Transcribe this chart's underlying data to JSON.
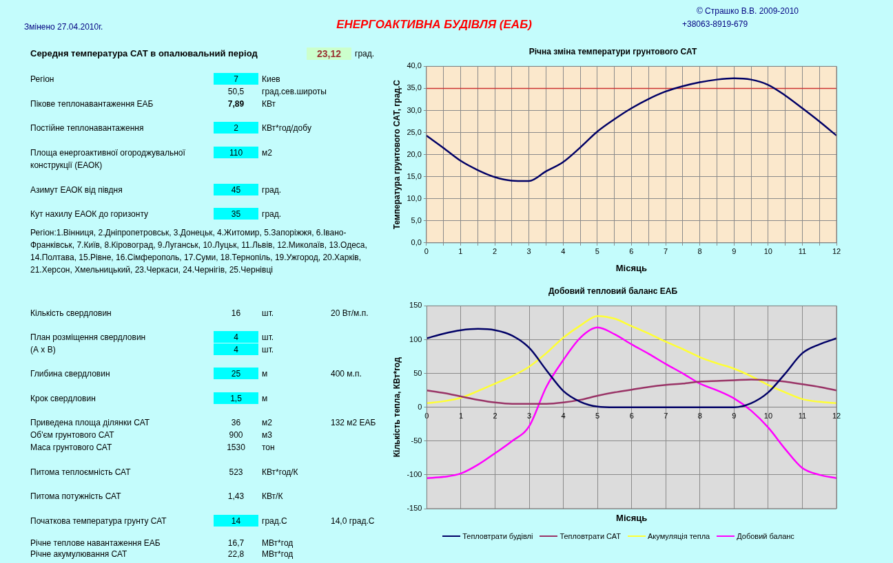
{
  "chart_data": [
    {
      "type": "other",
      "title": "ЕНЕРГОАКТИВНА БУДІВЛЯ (ЕАБ)",
      "annotations": [
        "Змінено 27.04.2010г.",
        "© Страшко В.В. 2009-2010",
        "+38063-8919-679",
        "Середня температура САТ в опалювальний період",
        "23,12",
        "град.",
        "Регіон",
        "7",
        "Киев",
        "50,5",
        "град.сев.широты",
        "Пікове теплонавантаження ЕАБ",
        "7,89",
        "КВт",
        "Постійне теплонавантаження",
        "2",
        "КВт*год/добу",
        "Площа енергоактивної огороджувальної",
        "110",
        "м2",
        "конструкції (ЕАОК)",
        "Азимут ЕАОК від півдня",
        "45",
        "град.",
        "Кут нахилу ЕАОК до горизонту",
        "35",
        "град.",
        "Регіон:1.Вінниця, 2.Дніпропетровськ, 3.Донецьк, 4.Житомир, 5.Запоріжжя, 6.Івано-Франківськ, 7.Київ, 8.Кіровоград, 9.Луганськ, 10.Луцьк, 11.Львів, 12.Миколаїв, 13.Одеса, 14.Полтава, 15.Рівне, 16.Сімферополь, 17.Суми, 18.Тернопіль, 19.Ужгород, 20.Харків, 21.Херсон, Хмельницький, 23.Черкаси, 24.Чернігів, 25.Чернівці",
        "Кількість свердловин",
        "16",
        "шт.",
        "20 Вт/м.п.",
        "План розміщення свердловин",
        "4",
        "шт.",
        "(А х В)",
        "4",
        "шт.",
        "Глибина свердловин",
        "25",
        "м",
        "400 м.п.",
        "Крок свердловин",
        "1,5",
        "м",
        "Приведена площа ділянки САТ",
        "36",
        "м2",
        "132 м2 ЕАБ",
        "Об'єм грунтового САТ",
        "900",
        "м3",
        "Маса грунтового САТ",
        "1530",
        "тон",
        "Питома теплоємність САТ",
        "523",
        "КВт*год/К",
        "Питома потужність САТ",
        "1,43",
        "КВт/К",
        "Початкова температура грунту САТ",
        "14",
        "град.С",
        "14,0 град.С",
        "Річне теплове навантаження ЕАБ",
        "16,7",
        "МВт*год",
        "Річне акумулювання САТ",
        "22,8",
        "МВт*год"
      ]
    },
    {
      "type": "line",
      "title": "Річна зміна температури грунтового САТ",
      "xlabel": "Місяць",
      "ylabel": "Температура грунтового САТ, град.С",
      "x": [
        0,
        0.5,
        1,
        1.5,
        2,
        2.5,
        3,
        3.5,
        4,
        4.5,
        5,
        5.5,
        6,
        6.5,
        7,
        7.5,
        8,
        8.5,
        9,
        9.5,
        10,
        10.5,
        11,
        11.5,
        12
      ],
      "series": [
        {
          "color": "#000066",
          "values": [
            24.3,
            21.5,
            18.6,
            16.5,
            14.9,
            14.1,
            14.0,
            16.2,
            18.3,
            21.6,
            25.2,
            28.0,
            30.5,
            32.6,
            34.3,
            35.5,
            36.4,
            37.0,
            37.3,
            37.0,
            35.8,
            33.4,
            30.5,
            27.5,
            24.3
          ]
        }
      ],
      "xlim": [
        0,
        12
      ],
      "xticks": [
        0,
        {
          "value": 0.5,
          "label": null
        },
        1,
        {
          "value": 1.5,
          "label": null
        },
        2,
        {
          "value": 2.5,
          "label": null
        },
        3,
        {
          "value": 3.5,
          "label": null
        },
        4,
        {
          "value": 4.5,
          "label": null
        },
        5,
        {
          "value": 5.5,
          "label": null
        },
        6,
        {
          "value": 6.5,
          "label": null
        },
        7,
        {
          "value": 7.5,
          "label": null
        },
        8,
        {
          "value": 8.5,
          "label": null
        },
        9,
        {
          "value": 9.5,
          "label": null
        },
        10,
        {
          "value": 10.5,
          "label": null
        },
        11,
        {
          "value": 11.5,
          "label": null
        },
        12
      ],
      "ylim": [
        0,
        40
      ],
      "yticks": [
        {
          "value": 0,
          "label": "0,0"
        },
        {
          "value": 5,
          "label": "5,0"
        },
        {
          "value": 10,
          "label": "10,0"
        },
        {
          "value": 15,
          "label": "15,0"
        },
        {
          "value": 20,
          "label": "20,0"
        },
        {
          "value": 25,
          "label": "25,0"
        },
        {
          "value": 30,
          "label": "30,0"
        },
        {
          "value": 35,
          "label": "35,0"
        },
        {
          "value": 40,
          "label": "40,0"
        }
      ],
      "ref_lines": [
        {
          "axis": "y",
          "value": 35,
          "color": "#cc3333"
        }
      ],
      "grid": true,
      "marker": "none",
      "line_style": "solid"
    },
    {
      "type": "line",
      "title": "Добовий тепловий баланс ЕАБ",
      "xlabel": "Місяць",
      "ylabel": "Кількість тепла, КВт*год",
      "x": [
        0,
        0.5,
        1,
        1.5,
        2,
        2.5,
        3,
        3.5,
        4,
        4.5,
        5,
        5.5,
        6,
        6.5,
        7,
        7.5,
        8,
        8.5,
        9,
        9.5,
        10,
        10.5,
        11,
        11.5,
        12
      ],
      "series": [
        {
          "name": "Тепловтрати будівлі",
          "color": "#000066",
          "values": [
            102,
            109,
            114,
            116,
            114,
            106,
            88,
            55,
            24,
            8,
            1,
            0,
            0,
            0,
            0,
            0,
            0,
            0,
            0,
            6,
            22,
            50,
            80,
            93,
            102
          ]
        },
        {
          "name": "Тепловтрати САТ",
          "color": "#993366",
          "values": [
            25,
            21,
            16,
            11,
            7,
            5,
            5,
            5,
            7,
            11,
            17,
            22,
            26,
            30,
            33,
            35,
            38,
            39,
            40,
            41,
            40,
            38,
            34,
            30,
            25
          ]
        },
        {
          "name": "Акумуляція тепла",
          "color": "#ffff33",
          "values": [
            6,
            9,
            14,
            24,
            35,
            46,
            60,
            80,
            103,
            121,
            135,
            131,
            120,
            109,
            97,
            86,
            74,
            65,
            57,
            46,
            33,
            22,
            12,
            8,
            6
          ]
        },
        {
          "name": "Добовий баланс",
          "color": "#ff00ff",
          "values": [
            -105,
            -103,
            -98,
            -85,
            -68,
            -50,
            -28,
            30,
            70,
            103,
            118,
            108,
            93,
            79,
            64,
            50,
            35,
            25,
            13,
            -5,
            -30,
            -62,
            -90,
            -100,
            -105
          ]
        }
      ],
      "xlim": [
        0,
        12
      ],
      "xticks": [
        0,
        1,
        2,
        3,
        4,
        5,
        6,
        7,
        8,
        9,
        10,
        11,
        12
      ],
      "ylim": [
        -150,
        150
      ],
      "yticks": [
        -150,
        -100,
        -50,
        0,
        50,
        100,
        150
      ],
      "grid": true,
      "legend": "bottom",
      "marker": "none",
      "line_style": "solid"
    }
  ]
}
